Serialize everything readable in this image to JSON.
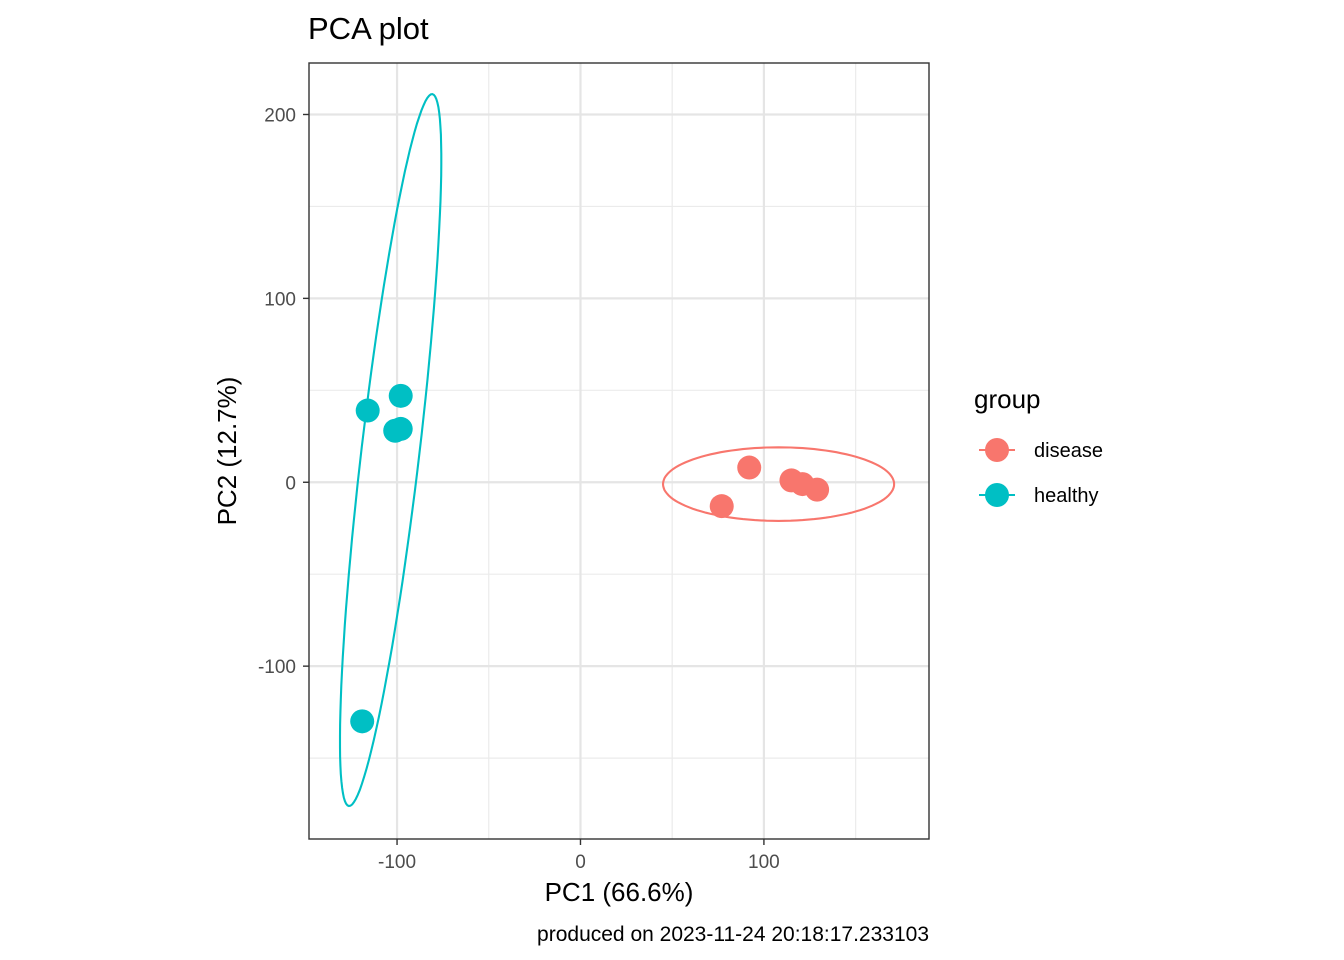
{
  "chart_data": {
    "type": "scatter",
    "title": "PCA plot",
    "xlabel": "PC1 (66.6%)",
    "ylabel": "PC2 (12.7%)",
    "caption": "produced on 2023-11-24 20:18:17.233103",
    "xlim": [
      -148,
      190
    ],
    "ylim": [
      -194,
      228
    ],
    "x_ticks": [
      -100,
      0,
      100
    ],
    "y_ticks": [
      200,
      100,
      0,
      -100
    ],
    "x_tick_labels": [
      "-100",
      "0",
      "100"
    ],
    "y_tick_labels": [
      "200",
      "100",
      "0",
      "-100"
    ],
    "x_minor_gridlines": [
      -50,
      50,
      150
    ],
    "y_minor_gridlines": [
      150,
      50,
      -50,
      -150
    ],
    "grid": true,
    "legend": {
      "title": "group",
      "position": "right",
      "entries": [
        "disease",
        "healthy"
      ]
    },
    "series": [
      {
        "name": "disease",
        "color": "#F8766D",
        "points": [
          {
            "x": 92,
            "y": 8
          },
          {
            "x": 115,
            "y": 1
          },
          {
            "x": 121,
            "y": -1
          },
          {
            "x": 129,
            "y": -4
          },
          {
            "x": 77,
            "y": -13
          }
        ],
        "ellipse": {
          "cx": 108,
          "cy": -1,
          "rx": 63,
          "ry": 20,
          "rotation_deg": 0
        }
      },
      {
        "name": "healthy",
        "color": "#00BFC4",
        "points": [
          {
            "x": -98,
            "y": 47
          },
          {
            "x": -116,
            "y": 39
          },
          {
            "x": -101,
            "y": 28
          },
          {
            "x": -98,
            "y": 29
          },
          {
            "x": -119,
            "y": -130
          }
        ],
        "ellipse": {
          "cx": -103.5,
          "cy": 17.5,
          "rx": 15.8,
          "ry": 194.9,
          "rotation_deg": 6.7
        }
      }
    ]
  }
}
